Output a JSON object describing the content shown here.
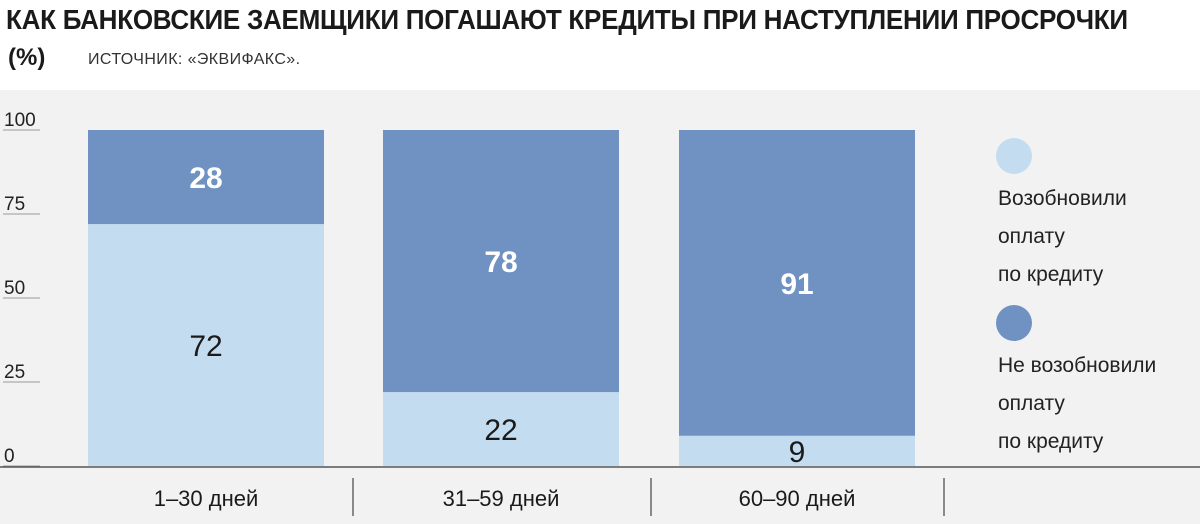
{
  "header": {
    "title": "КАК БАНКОВСКИЕ ЗАЕМЩИКИ ПОГАШАЮТ КРЕДИТЫ ПРИ НАСТУПЛЕНИИ ПРОСРОЧКИ",
    "unit": "(%)",
    "source": "ИСТОЧНИК: «ЭКВИФАКС»."
  },
  "colors": {
    "resumed": "#c3dcf0",
    "not_resumed": "#7092c2",
    "grid": "#9a9a9a",
    "background_panel": "#f2f2f2"
  },
  "chart_data": {
    "type": "bar",
    "stacked": true,
    "title": "КАК БАНКОВСКИЕ ЗАЕМЩИКИ ПОГАШАЮТ КРЕДИТЫ ПРИ НАСТУПЛЕНИИ ПРОСРОЧКИ",
    "ylabel": "(%)",
    "ylim": [
      0,
      100
    ],
    "yticks": [
      0,
      25,
      50,
      75,
      100
    ],
    "categories": [
      "1–30 дней",
      "31–59 дней",
      "60–90 дней"
    ],
    "series": [
      {
        "name": "Возобновили оплату по кредиту",
        "values": [
          72,
          22,
          9
        ]
      },
      {
        "name": "Не возобновили оплату по кредиту",
        "values": [
          28,
          78,
          91
        ]
      }
    ],
    "legend": "right",
    "grid": false
  },
  "legend": {
    "items": [
      {
        "label": "Возобновили\nоплату\nпо кредиту"
      },
      {
        "label": "Не возобновили\nоплату\nпо кредиту"
      }
    ]
  }
}
